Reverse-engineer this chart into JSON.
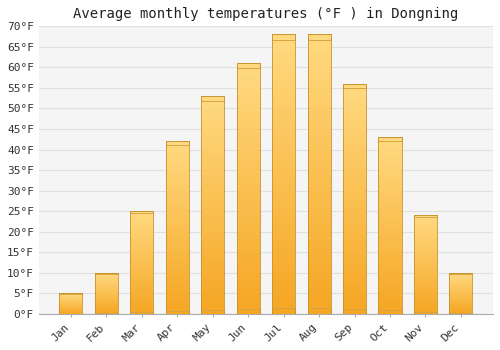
{
  "title": "Average monthly temperatures (°F ) in Dongning",
  "months": [
    "Jan",
    "Feb",
    "Mar",
    "Apr",
    "May",
    "Jun",
    "Jul",
    "Aug",
    "Sep",
    "Oct",
    "Nov",
    "Dec"
  ],
  "values": [
    5,
    10,
    25,
    42,
    53,
    61,
    68,
    68,
    56,
    43,
    24,
    10
  ],
  "bar_color_bottom": "#F5A623",
  "bar_color_top": "#FFD980",
  "bar_edge_color": "#C8922A",
  "ylim": [
    0,
    70
  ],
  "yticks": [
    0,
    5,
    10,
    15,
    20,
    25,
    30,
    35,
    40,
    45,
    50,
    55,
    60,
    65,
    70
  ],
  "ytick_labels": [
    "0°F",
    "5°F",
    "10°F",
    "15°F",
    "20°F",
    "25°F",
    "30°F",
    "35°F",
    "40°F",
    "45°F",
    "50°F",
    "55°F",
    "60°F",
    "65°F",
    "70°F"
  ],
  "background_color": "#ffffff",
  "plot_bg_color": "#f5f5f5",
  "grid_color": "#e0e0e0",
  "title_fontsize": 10,
  "tick_fontsize": 8,
  "bar_width": 0.65,
  "figsize": [
    5.0,
    3.5
  ],
  "dpi": 100
}
